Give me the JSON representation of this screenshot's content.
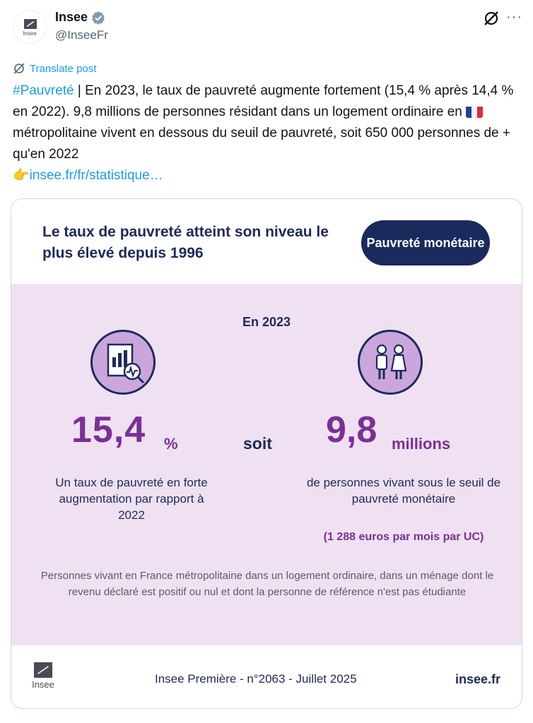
{
  "author": {
    "avatar_text": "Insee",
    "name": "Insee",
    "handle": "@InseeFr"
  },
  "translate_label": "Translate post",
  "tweet": {
    "hashtag": "#Pauvreté",
    "text_1": " | En 2023, le taux de pauvreté augmente fortement (15,4 % après 14,4 % en 2022). 9,8 millions de personnes résidant dans un logement ordinaire en ",
    "text_2": " métropolitaine vivent en dessous du seuil de pauvreté, soit 650 000 personnes de + qu'en 2022",
    "pointer_emoji": "👉",
    "link": "insee.fr/fr/statistique…"
  },
  "card": {
    "headline": "Le taux de pauvreté atteint son niveau le plus élevé depuis 1996",
    "pill_label": "Pauvreté monétaire",
    "year_label": "En 2023",
    "stat1_value": "15,4",
    "stat1_unit": "%",
    "stat1_desc": "Un taux de pauvreté en forte augmentation par rapport à 2022",
    "connector": "soit",
    "stat2_value": "9,8",
    "stat2_unit": "millions",
    "stat2_desc": "de personnes vivant sous le seuil de pauvreté monétaire",
    "threshold": "(1 288 euros par mois par UC)",
    "note": "Personnes vivant en France métropolitaine dans un logement ordinaire, dans un ménage dont le revenu déclaré est positif ou nul et dont la personne de référence n'est pas étudiante",
    "footer_logo_text": "Insee",
    "footer_publication": "Insee Première - n°2063 - Juillet 2025",
    "footer_site": "insee.fr"
  },
  "icons": [
    "verified-badge-icon",
    "grok-icon",
    "more-icon",
    "translate-icon",
    "report-chart-icon",
    "people-icon",
    "french-flag-icon"
  ],
  "colors": {
    "link_blue": "#1d9bf0",
    "navy": "#1b2a5c",
    "purple": "#7b2f95",
    "band": "#efe1f2"
  }
}
